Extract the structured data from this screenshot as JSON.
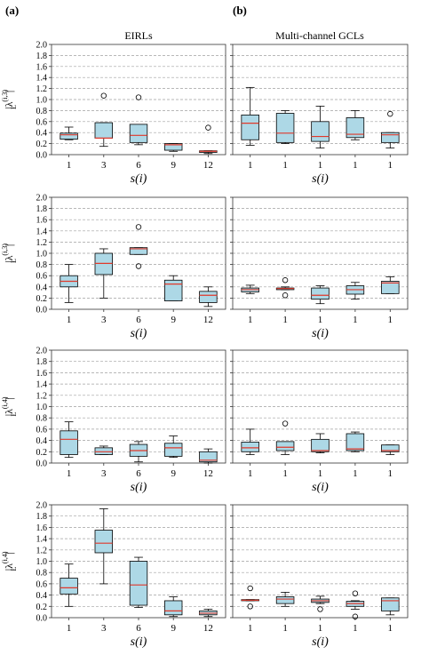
{
  "panel_labels": [
    "(a)",
    "(b)"
  ],
  "column_titles": [
    "EIRLs",
    "Multi-channel GCLs"
  ],
  "row_ylabels": [
    {
      "main": "|λ",
      "sub": "L",
      "sup": "(i,3)",
      "tail": "|"
    },
    {
      "main": "|λ",
      "sub": "L",
      "sup": "(i,3)",
      "tail": "|"
    },
    {
      "main": "|λ",
      "sub": "L",
      "sup": "(i,4)",
      "tail": "|"
    },
    {
      "main": "|λ",
      "sub": "L",
      "sup": "(i,4)",
      "tail": "|"
    }
  ],
  "colors": {
    "box_fill": "#add8e6",
    "median": "#e0392b",
    "grid": "#a0a0a0"
  },
  "chart_data": [
    {
      "type": "box",
      "panel": "(a)",
      "row": 1,
      "title": "EIRLs",
      "xlabel": "s(i)",
      "ylim": [
        0,
        2.0
      ],
      "yticks": [
        "0.0",
        "0.2",
        "0.4",
        "0.6",
        "0.8",
        "1.0",
        "1.2",
        "1.4",
        "1.6",
        "1.8",
        "2.0"
      ],
      "grid": "y-dashed",
      "categories": [
        "1",
        "3",
        "6",
        "9",
        "12"
      ],
      "boxes": [
        {
          "whislo": 0.27,
          "q1": 0.28,
          "med": 0.36,
          "q3": 0.39,
          "whishi": 0.5,
          "fliers": []
        },
        {
          "whislo": 0.15,
          "q1": 0.3,
          "med": 0.3,
          "q3": 0.58,
          "whishi": 0.58,
          "fliers": [
            1.07
          ]
        },
        {
          "whislo": 0.18,
          "q1": 0.22,
          "med": 0.35,
          "q3": 0.55,
          "whishi": 0.55,
          "fliers": [
            1.04
          ]
        },
        {
          "whislo": 0.06,
          "q1": 0.08,
          "med": 0.18,
          "q3": 0.2,
          "whishi": 0.2,
          "fliers": []
        },
        {
          "whislo": 0.02,
          "q1": 0.04,
          "med": 0.06,
          "q3": 0.07,
          "whishi": 0.07,
          "fliers": [
            0.49
          ]
        }
      ]
    },
    {
      "type": "box",
      "panel": "(b)",
      "row": 1,
      "title": "Multi-channel GCLs",
      "xlabel": "s(i)",
      "ylim": [
        0,
        2.0
      ],
      "grid": "y-dashed",
      "categories": [
        "1",
        "1",
        "1",
        "1",
        "1"
      ],
      "boxes": [
        {
          "whislo": 0.17,
          "q1": 0.27,
          "med": 0.57,
          "q3": 0.72,
          "whishi": 1.22,
          "fliers": []
        },
        {
          "whislo": 0.2,
          "q1": 0.22,
          "med": 0.39,
          "q3": 0.75,
          "whishi": 0.8,
          "fliers": []
        },
        {
          "whislo": 0.12,
          "q1": 0.24,
          "med": 0.33,
          "q3": 0.6,
          "whishi": 0.88,
          "fliers": []
        },
        {
          "whislo": 0.27,
          "q1": 0.31,
          "med": 0.37,
          "q3": 0.67,
          "whishi": 0.8,
          "fliers": []
        },
        {
          "whislo": 0.12,
          "q1": 0.22,
          "med": 0.36,
          "q3": 0.4,
          "whishi": 0.4,
          "fliers": [
            0.74
          ]
        }
      ]
    },
    {
      "type": "box",
      "panel": "(a)",
      "row": 2,
      "title": "",
      "xlabel": "s(i)",
      "ylim": [
        0,
        2.0
      ],
      "grid": "y-dashed",
      "categories": [
        "1",
        "3",
        "6",
        "9",
        "12"
      ],
      "boxes": [
        {
          "whislo": 0.12,
          "q1": 0.4,
          "med": 0.5,
          "q3": 0.6,
          "whishi": 0.8,
          "fliers": []
        },
        {
          "whislo": 0.2,
          "q1": 0.62,
          "med": 0.82,
          "q3": 1.0,
          "whishi": 1.08,
          "fliers": []
        },
        {
          "whislo": 0.98,
          "q1": 0.98,
          "med": 1.08,
          "q3": 1.1,
          "whishi": 1.1,
          "fliers": [
            1.47,
            0.77
          ]
        },
        {
          "whislo": 0.15,
          "q1": 0.15,
          "med": 0.45,
          "q3": 0.52,
          "whishi": 0.6,
          "fliers": []
        },
        {
          "whislo": 0.05,
          "q1": 0.12,
          "med": 0.25,
          "q3": 0.32,
          "whishi": 0.4,
          "fliers": []
        }
      ]
    },
    {
      "type": "box",
      "panel": "(b)",
      "row": 2,
      "title": "",
      "xlabel": "s(i)",
      "ylim": [
        0,
        2.0
      ],
      "grid": "y-dashed",
      "categories": [
        "1",
        "1",
        "1",
        "1",
        "1"
      ],
      "boxes": [
        {
          "whislo": 0.28,
          "q1": 0.31,
          "med": 0.35,
          "q3": 0.38,
          "whishi": 0.43,
          "fliers": []
        },
        {
          "whislo": 0.35,
          "q1": 0.35,
          "med": 0.37,
          "q3": 0.38,
          "whishi": 0.4,
          "fliers": [
            0.52,
            0.25
          ]
        },
        {
          "whislo": 0.1,
          "q1": 0.18,
          "med": 0.25,
          "q3": 0.38,
          "whishi": 0.42,
          "fliers": []
        },
        {
          "whislo": 0.18,
          "q1": 0.27,
          "med": 0.35,
          "q3": 0.42,
          "whishi": 0.48,
          "fliers": []
        },
        {
          "whislo": 0.28,
          "q1": 0.28,
          "med": 0.47,
          "q3": 0.5,
          "whishi": 0.58,
          "fliers": []
        }
      ]
    },
    {
      "type": "box",
      "panel": "(a)",
      "row": 3,
      "title": "",
      "xlabel": "s(i)",
      "ylim": [
        0,
        2.0
      ],
      "grid": "y-dashed",
      "categories": [
        "1",
        "3",
        "6",
        "9",
        "12"
      ],
      "boxes": [
        {
          "whislo": 0.1,
          "q1": 0.15,
          "med": 0.42,
          "q3": 0.57,
          "whishi": 0.73,
          "fliers": []
        },
        {
          "whislo": 0.15,
          "q1": 0.15,
          "med": 0.2,
          "q3": 0.27,
          "whishi": 0.3,
          "fliers": []
        },
        {
          "whislo": 0.02,
          "q1": 0.12,
          "med": 0.22,
          "q3": 0.33,
          "whishi": 0.38,
          "fliers": []
        },
        {
          "whislo": 0.1,
          "q1": 0.12,
          "med": 0.27,
          "q3": 0.35,
          "whishi": 0.48,
          "fliers": []
        },
        {
          "whislo": 0.0,
          "q1": 0.02,
          "med": 0.05,
          "q3": 0.2,
          "whishi": 0.25,
          "fliers": []
        }
      ]
    },
    {
      "type": "box",
      "panel": "(b)",
      "row": 3,
      "title": "",
      "xlabel": "s(i)",
      "ylim": [
        0,
        2.0
      ],
      "grid": "y-dashed",
      "categories": [
        "1",
        "1",
        "1",
        "1",
        "1"
      ],
      "boxes": [
        {
          "whislo": 0.15,
          "q1": 0.2,
          "med": 0.27,
          "q3": 0.37,
          "whishi": 0.6,
          "fliers": []
        },
        {
          "whislo": 0.15,
          "q1": 0.22,
          "med": 0.28,
          "q3": 0.38,
          "whishi": 0.38,
          "fliers": [
            0.7
          ]
        },
        {
          "whislo": 0.18,
          "q1": 0.2,
          "med": 0.22,
          "q3": 0.42,
          "whishi": 0.52,
          "fliers": []
        },
        {
          "whislo": 0.2,
          "q1": 0.22,
          "med": 0.25,
          "q3": 0.52,
          "whishi": 0.55,
          "fliers": []
        },
        {
          "whislo": 0.15,
          "q1": 0.2,
          "med": 0.22,
          "q3": 0.32,
          "whishi": 0.32,
          "fliers": []
        }
      ]
    },
    {
      "type": "box",
      "panel": "(a)",
      "row": 4,
      "title": "",
      "xlabel": "s(i)",
      "ylim": [
        0,
        2.0
      ],
      "grid": "y-dashed",
      "categories": [
        "1",
        "3",
        "6",
        "9",
        "12"
      ],
      "boxes": [
        {
          "whislo": 0.2,
          "q1": 0.42,
          "med": 0.53,
          "q3": 0.7,
          "whishi": 0.95,
          "fliers": []
        },
        {
          "whislo": 0.6,
          "q1": 1.15,
          "med": 1.32,
          "q3": 1.55,
          "whishi": 1.93,
          "fliers": []
        },
        {
          "whislo": 0.18,
          "q1": 0.22,
          "med": 0.58,
          "q3": 1.0,
          "whishi": 1.07,
          "fliers": []
        },
        {
          "whislo": 0.02,
          "q1": 0.05,
          "med": 0.12,
          "q3": 0.3,
          "whishi": 0.37,
          "fliers": []
        },
        {
          "whislo": 0.02,
          "q1": 0.05,
          "med": 0.08,
          "q3": 0.12,
          "whishi": 0.15,
          "fliers": []
        }
      ]
    },
    {
      "type": "box",
      "panel": "(b)",
      "row": 4,
      "title": "",
      "xlabel": "s(i)",
      "ylim": [
        0,
        2.0
      ],
      "grid": "y-dashed",
      "categories": [
        "1",
        "1",
        "1",
        "1",
        "1"
      ],
      "boxes": [
        {
          "whislo": 0.3,
          "q1": 0.3,
          "med": 0.31,
          "q3": 0.32,
          "whishi": 0.32,
          "fliers": [
            0.52,
            0.2
          ]
        },
        {
          "whislo": 0.2,
          "q1": 0.25,
          "med": 0.33,
          "q3": 0.37,
          "whishi": 0.45,
          "fliers": []
        },
        {
          "whislo": 0.25,
          "q1": 0.27,
          "med": 0.3,
          "q3": 0.33,
          "whishi": 0.38,
          "fliers": [
            0.15
          ]
        },
        {
          "whislo": 0.15,
          "q1": 0.2,
          "med": 0.25,
          "q3": 0.29,
          "whishi": 0.3,
          "fliers": [
            0.43,
            0.02
          ]
        },
        {
          "whislo": 0.05,
          "q1": 0.12,
          "med": 0.3,
          "q3": 0.35,
          "whishi": 0.35,
          "fliers": []
        }
      ]
    }
  ]
}
